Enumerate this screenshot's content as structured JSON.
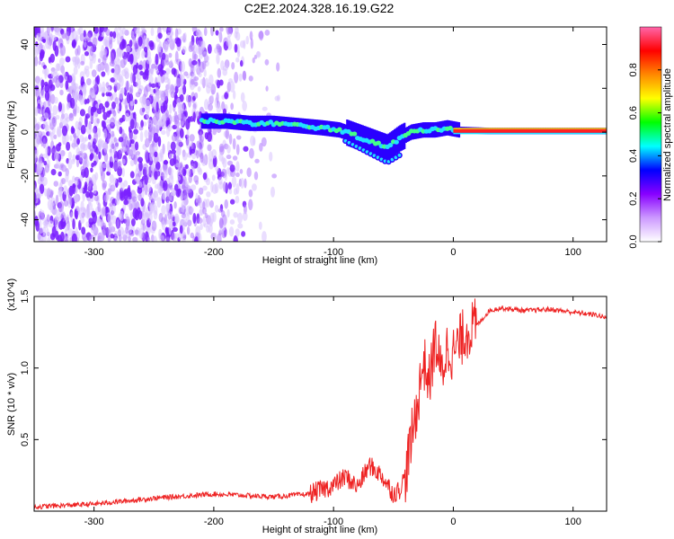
{
  "title": "C2E2.2024.328.16.19.G22",
  "chart_data": [
    {
      "type": "heatmap",
      "xlabel": "Height of straight line (km)",
      "ylabel": "Frequency (Hz)",
      "xlim": [
        -350,
        128
      ],
      "ylim": [
        -50,
        48
      ],
      "x_ticks": [
        -300,
        -200,
        -100,
        0,
        100
      ],
      "x_tick_labels": [
        "-300",
        "-200",
        "-100",
        "0",
        "100"
      ],
      "y_ticks": [
        -40,
        -20,
        0,
        20,
        40
      ],
      "y_tick_labels": [
        "-40",
        "-20",
        "0",
        "20",
        "40"
      ],
      "colorbar": {
        "label": "Normalized spectral amplitude",
        "range": [
          0,
          1
        ],
        "ticks": [
          0.0,
          0.2,
          0.4,
          0.6,
          0.8
        ],
        "tick_labels": [
          "0.0",
          "0.2",
          "0.4",
          "0.6",
          "0.8"
        ],
        "colormap": [
          "#ffffff",
          "#cc99ff",
          "#8800ff",
          "#0000ff",
          "#00ffff",
          "#00ff00",
          "#ffff00",
          "#ff8800",
          "#ff0000",
          "#ff66aa"
        ]
      },
      "noise_region_x": [
        -350,
        -160
      ],
      "signal_track": {
        "x": [
          -210,
          -190,
          -170,
          -150,
          -130,
          -110,
          -95,
          -85,
          -75,
          -65,
          -55,
          -45,
          -35,
          -25,
          -15,
          -5,
          5,
          30,
          60,
          90,
          128
        ],
        "y": [
          5,
          5,
          4,
          4,
          3,
          2,
          1,
          -1,
          -3,
          -5,
          -7,
          -3,
          0,
          1,
          1,
          2,
          1,
          0.5,
          0.5,
          0.5,
          0.5
        ]
      }
    },
    {
      "type": "line",
      "xlabel": "Height of straight line (km)",
      "ylabel": "SNR (10 * v/v)",
      "y_multiplier_label": "(x10^4)",
      "xlim": [
        -350,
        128
      ],
      "ylim": [
        0,
        15000
      ],
      "x_ticks": [
        -300,
        -200,
        -100,
        0,
        100
      ],
      "x_tick_labels": [
        "-300",
        "-200",
        "-100",
        "0",
        "100"
      ],
      "y_ticks": [
        5000,
        10000,
        15000
      ],
      "y_tick_labels": [
        "0.5",
        "1.0",
        "1.5"
      ],
      "color": "#ee2222",
      "series": [
        {
          "x": [
            -350,
            -300,
            -250,
            -200,
            -150,
            -120,
            -100,
            -90,
            -80,
            -70,
            -60,
            -50,
            -45,
            -40,
            -35,
            -30,
            -25,
            -20,
            -15,
            -10,
            -5,
            0,
            10,
            20,
            30,
            40,
            60,
            80,
            100,
            120,
            128
          ],
          "y": [
            300,
            500,
            900,
            1200,
            1000,
            1200,
            1800,
            2400,
            1700,
            3200,
            2500,
            1200,
            1500,
            2500,
            5000,
            7500,
            10500,
            9000,
            12000,
            9500,
            11500,
            11000,
            12500,
            13000,
            14000,
            14200,
            14000,
            14100,
            13900,
            13700,
            13500
          ]
        }
      ]
    }
  ]
}
